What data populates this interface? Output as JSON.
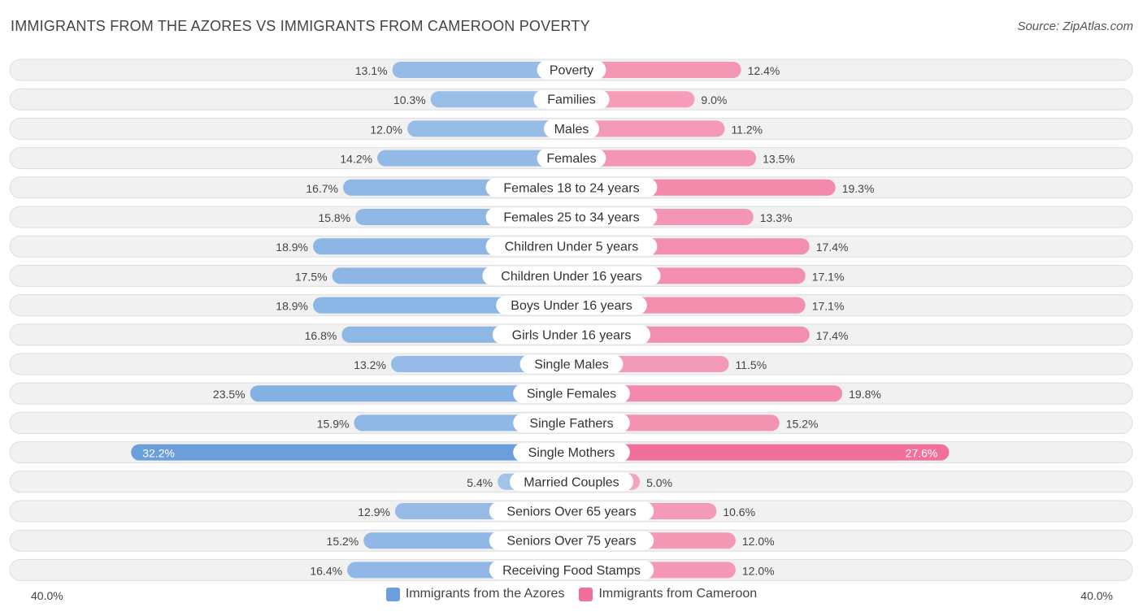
{
  "title": "IMMIGRANTS FROM THE AZORES VS IMMIGRANTS FROM CAMEROON POVERTY",
  "source": "Source: ZipAtlas.com",
  "colors": {
    "left": "#6a9fdc",
    "left_light": "#a9c8ee",
    "right": "#f07099",
    "right_light": "#f6a7c0",
    "row_bg": "#f1f1f1",
    "row_border": "#dedede"
  },
  "chart_data": {
    "type": "bar",
    "orientation": "horizontal-diverging",
    "title": "IMMIGRANTS FROM THE AZORES VS IMMIGRANTS FROM CAMEROON POVERTY",
    "xlim": [
      0,
      40.0
    ],
    "axis_left_label": "40.0%",
    "axis_right_label": "40.0%",
    "legend": [
      "Immigrants from the Azores",
      "Immigrants from Cameroon"
    ],
    "categories": [
      "Poverty",
      "Families",
      "Males",
      "Females",
      "Females 18 to 24 years",
      "Females 25 to 34 years",
      "Children Under 5 years",
      "Children Under 16 years",
      "Boys Under 16 years",
      "Girls Under 16 years",
      "Single Males",
      "Single Females",
      "Single Fathers",
      "Single Mothers",
      "Married Couples",
      "Seniors Over 65 years",
      "Seniors Over 75 years",
      "Receiving Food Stamps"
    ],
    "series": [
      {
        "name": "Immigrants from the Azores",
        "values": [
          13.1,
          10.3,
          12.0,
          14.2,
          16.7,
          15.8,
          18.9,
          17.5,
          18.9,
          16.8,
          13.2,
          23.5,
          15.9,
          32.2,
          5.4,
          12.9,
          15.2,
          16.4
        ],
        "labels": [
          "13.1%",
          "10.3%",
          "12.0%",
          "14.2%",
          "16.7%",
          "15.8%",
          "18.9%",
          "17.5%",
          "18.9%",
          "16.8%",
          "13.2%",
          "23.5%",
          "15.9%",
          "32.2%",
          "5.4%",
          "12.9%",
          "15.2%",
          "16.4%"
        ]
      },
      {
        "name": "Immigrants from Cameroon",
        "values": [
          12.4,
          9.0,
          11.2,
          13.5,
          19.3,
          13.3,
          17.4,
          17.1,
          17.1,
          17.4,
          11.5,
          19.8,
          15.2,
          27.6,
          5.0,
          10.6,
          12.0,
          12.0
        ],
        "labels": [
          "12.4%",
          "9.0%",
          "11.2%",
          "13.5%",
          "19.3%",
          "13.3%",
          "17.4%",
          "17.1%",
          "17.1%",
          "17.4%",
          "11.5%",
          "19.8%",
          "15.2%",
          "27.6%",
          "5.0%",
          "10.6%",
          "12.0%",
          "12.0%"
        ]
      }
    ]
  }
}
